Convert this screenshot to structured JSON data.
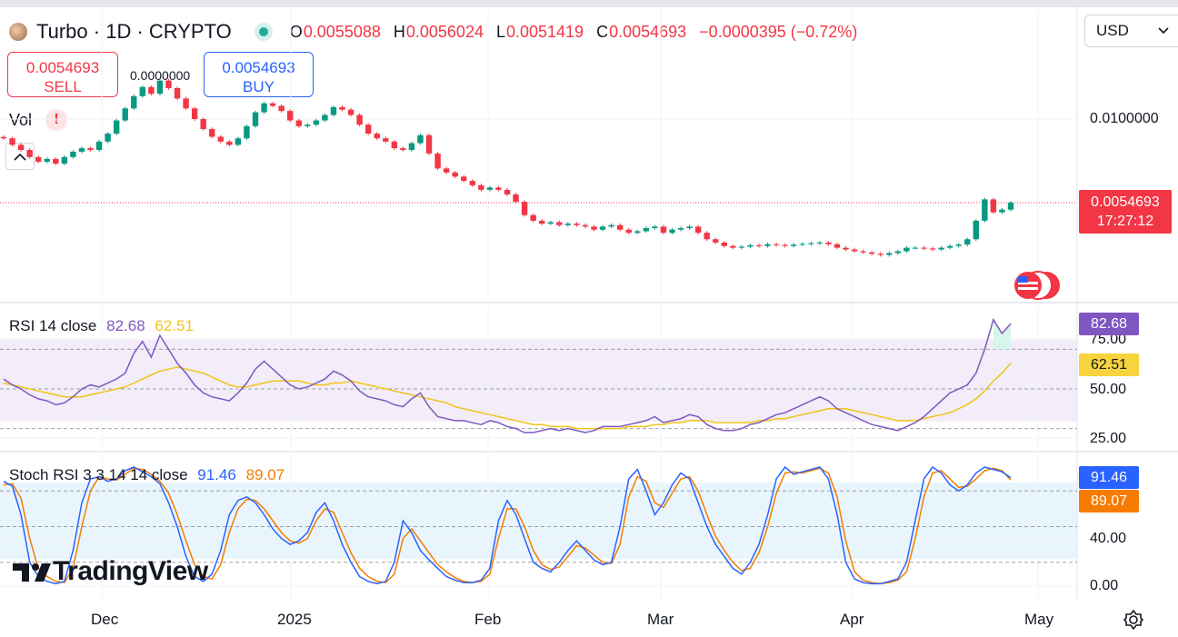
{
  "header": {
    "symbol": "Turbo · 1D · CRYPTO",
    "open_label": "O",
    "open": "0.0055088",
    "high_label": "H",
    "high": "0.0056024",
    "low_label": "L",
    "low": "0.0051419",
    "close_label": "C",
    "close": "0.0054693",
    "change": "−0.0000395 (−0.72%)",
    "currency": "USD"
  },
  "trade": {
    "sell_price": "0.0054693",
    "sell_label": "SELL",
    "buy_price": "0.0054693",
    "buy_label": "BUY",
    "spread": "0.0000000"
  },
  "volume": {
    "label": "Vol",
    "warning": "!"
  },
  "price_axis": {
    "level_label": "0.0100000",
    "current_price": "0.0054693",
    "countdown": "17:27:12"
  },
  "rsi": {
    "label": "RSI 14 close",
    "rsi_value": "82.68",
    "ma_value": "62.51",
    "ticks": [
      "75.00",
      "50.00",
      "25.00"
    ]
  },
  "stoch": {
    "label": "Stoch RSI 3 3 14 14 close",
    "k_value": "91.46",
    "d_value": "89.07",
    "ticks": [
      "40.00",
      "0.00"
    ]
  },
  "x_axis": [
    "Dec",
    "2025",
    "Feb",
    "Mar",
    "Apr",
    "May"
  ],
  "branding": "TradingView",
  "colors": {
    "up": "#089981",
    "down": "#f23645",
    "rsi": "#7e57c2",
    "rsi_ma": "#f0c419",
    "k": "#2962ff",
    "d": "#f57c00"
  },
  "chart_data": {
    "type": "candlestick",
    "title": "Turbo · 1D · CRYPTO",
    "price_scale": "log",
    "close": [
      0.0087,
      0.0083,
      0.008,
      0.0076,
      0.00735,
      0.0075,
      0.00725,
      0.0076,
      0.0079,
      0.0081,
      0.008,
      0.0085,
      0.009,
      0.0099,
      0.0108,
      0.0118,
      0.0126,
      0.012,
      0.0132,
      0.0125,
      0.0116,
      0.0108,
      0.01,
      0.0093,
      0.0088,
      0.0085,
      0.0083,
      0.0087,
      0.0095,
      0.0105,
      0.0112,
      0.011,
      0.0106,
      0.0099,
      0.0095,
      0.0096,
      0.0099,
      0.0103,
      0.0109,
      0.0107,
      0.0103,
      0.0096,
      0.009,
      0.0087,
      0.0085,
      0.0081,
      0.008,
      0.0084,
      0.0089,
      0.0078,
      0.007,
      0.0068,
      0.0066,
      0.0064,
      0.0062,
      0.006,
      0.0061,
      0.006,
      0.0058,
      0.0055,
      0.005,
      0.0048,
      0.0047,
      0.00475,
      0.00465,
      0.0047,
      0.00465,
      0.0046,
      0.0045,
      0.0046,
      0.00465,
      0.0045,
      0.0044,
      0.00445,
      0.00455,
      0.0046,
      0.0044,
      0.0045,
      0.00455,
      0.0046,
      0.0044,
      0.0042,
      0.0041,
      0.004,
      0.00395,
      0.00398,
      0.00402,
      0.004,
      0.00405,
      0.00403,
      0.004,
      0.00404,
      0.00406,
      0.00408,
      0.0041,
      0.00405,
      0.00395,
      0.0039,
      0.00385,
      0.00382,
      0.00378,
      0.00375,
      0.0038,
      0.00385,
      0.00395,
      0.00395,
      0.00393,
      0.0039,
      0.00395,
      0.004,
      0.00404,
      0.0042,
      0.0048,
      0.0056,
      0.0051,
      0.0052,
      0.00547
    ],
    "rsi": [
      55,
      52,
      50,
      47,
      45,
      44,
      42,
      43,
      46,
      50,
      52,
      51,
      53,
      55,
      58,
      68,
      74,
      66,
      77,
      70,
      63,
      58,
      52,
      48,
      46,
      45,
      44,
      48,
      53,
      60,
      64,
      60,
      56,
      52,
      50,
      51,
      53,
      55,
      59,
      57,
      54,
      49,
      46,
      45,
      44,
      42,
      41,
      45,
      48,
      41,
      36,
      35,
      34,
      34,
      33,
      32,
      34,
      33,
      31,
      30,
      28,
      28,
      29,
      30,
      29,
      30,
      29,
      28,
      29,
      31,
      31,
      31,
      32,
      33,
      34,
      36,
      33,
      34,
      35,
      37,
      36,
      32,
      30,
      29,
      29,
      30,
      32,
      33,
      35,
      37,
      38,
      40,
      42,
      44,
      46,
      44,
      40,
      38,
      36,
      34,
      32,
      31,
      30,
      29,
      31,
      33,
      36,
      40,
      44,
      48,
      50,
      52,
      58,
      70,
      85,
      78,
      83
    ],
    "rsi_ma": [
      53,
      52,
      51,
      50,
      49,
      48,
      47,
      46,
      46,
      46,
      47,
      48,
      49,
      50,
      51,
      53,
      55,
      57,
      59,
      60,
      61,
      60,
      59,
      58,
      56,
      54,
      52,
      51,
      51,
      52,
      53,
      54,
      54,
      54,
      54,
      53,
      52,
      52,
      53,
      53,
      54,
      53,
      52,
      51,
      50,
      49,
      48,
      47,
      46,
      45,
      44,
      43,
      41,
      40,
      39,
      38,
      37,
      36,
      35,
      34,
      33,
      32,
      32,
      31,
      31,
      31,
      30,
      30,
      30,
      30,
      30,
      30,
      31,
      31,
      31,
      32,
      32,
      33,
      33,
      34,
      34,
      34,
      33,
      33,
      33,
      33,
      33,
      34,
      34,
      35,
      35,
      36,
      37,
      38,
      39,
      40,
      40,
      40,
      39,
      38,
      37,
      36,
      35,
      34,
      34,
      34,
      35,
      36,
      37,
      38,
      40,
      42,
      45,
      49,
      54,
      58,
      63
    ],
    "stoch_k": [
      88,
      84,
      60,
      20,
      8,
      4,
      2,
      4,
      30,
      70,
      90,
      92,
      88,
      90,
      97,
      100,
      96,
      92,
      86,
      70,
      50,
      25,
      8,
      4,
      10,
      30,
      60,
      72,
      75,
      70,
      60,
      48,
      40,
      35,
      38,
      45,
      62,
      70,
      55,
      35,
      20,
      8,
      4,
      2,
      4,
      20,
      55,
      45,
      30,
      22,
      15,
      8,
      5,
      3,
      3,
      5,
      15,
      55,
      72,
      60,
      40,
      20,
      15,
      12,
      20,
      30,
      38,
      30,
      22,
      18,
      20,
      50,
      90,
      98,
      80,
      60,
      70,
      85,
      95,
      90,
      70,
      50,
      35,
      25,
      15,
      10,
      20,
      35,
      60,
      90,
      100,
      94,
      96,
      98,
      100,
      90,
      60,
      20,
      6,
      3,
      2,
      2,
      4,
      6,
      20,
      55,
      90,
      100,
      95,
      85,
      80,
      85,
      95,
      100,
      98,
      96,
      91
    ],
    "stoch_d": [
      85,
      86,
      74,
      40,
      15,
      8,
      4,
      3,
      15,
      50,
      80,
      92,
      90,
      89,
      94,
      99,
      98,
      94,
      88,
      78,
      60,
      38,
      18,
      8,
      6,
      18,
      45,
      65,
      73,
      72,
      65,
      55,
      45,
      38,
      36,
      40,
      55,
      65,
      62,
      45,
      28,
      15,
      8,
      4,
      3,
      10,
      40,
      48,
      38,
      28,
      18,
      12,
      7,
      4,
      3,
      4,
      10,
      40,
      65,
      65,
      50,
      30,
      18,
      14,
      16,
      25,
      34,
      32,
      26,
      20,
      19,
      35,
      75,
      92,
      88,
      70,
      66,
      78,
      90,
      92,
      80,
      60,
      42,
      30,
      20,
      13,
      15,
      28,
      50,
      78,
      95,
      96,
      95,
      97,
      99,
      95,
      75,
      38,
      12,
      5,
      3,
      2,
      3,
      5,
      12,
      40,
      75,
      95,
      97,
      90,
      83,
      84,
      90,
      97,
      99,
      97,
      89
    ],
    "rsi_bands": [
      70,
      50,
      30
    ],
    "stoch_bands": [
      80,
      50,
      20
    ],
    "x_tick_labels": [
      "Dec",
      "2025",
      "Feb",
      "Mar",
      "Apr",
      "May"
    ]
  }
}
